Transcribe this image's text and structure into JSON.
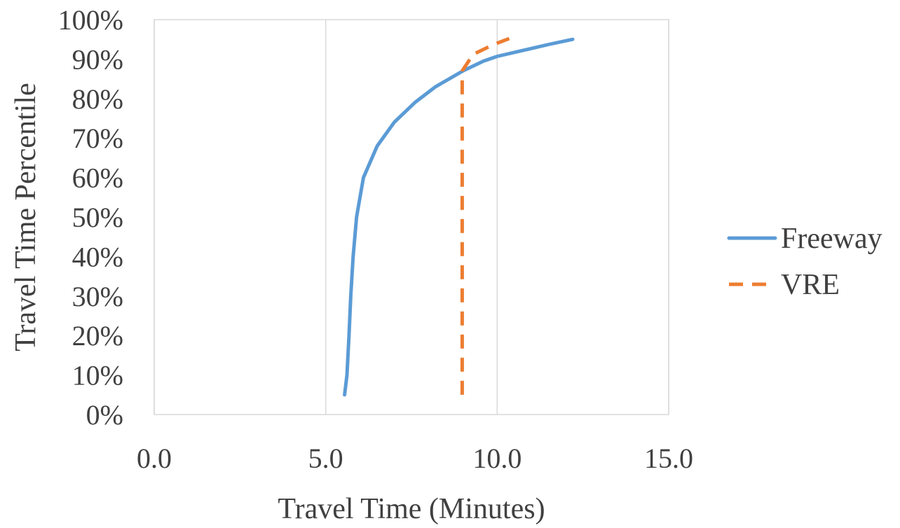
{
  "chart_data": {
    "type": "line",
    "title": "",
    "xlabel": "Travel Time (Minutes)",
    "ylabel": "Travel Time Percentile",
    "xlim": [
      0,
      15
    ],
    "ylim": [
      0,
      100
    ],
    "x_ticks": [
      0,
      5,
      10,
      15
    ],
    "x_tick_labels": [
      "0.0",
      "5.0",
      "10.0",
      "15.0"
    ],
    "y_ticks": [
      0,
      10,
      20,
      30,
      40,
      50,
      60,
      70,
      80,
      90,
      100
    ],
    "y_tick_labels": [
      "0%",
      "10%",
      "20%",
      "30%",
      "40%",
      "50%",
      "60%",
      "70%",
      "80%",
      "90%",
      "100%"
    ],
    "grid": "vertical",
    "legend_position": "right",
    "series": [
      {
        "name": "Freeway",
        "color": "#5b9bd5",
        "style": "solid",
        "points": [
          [
            5.55,
            5
          ],
          [
            5.62,
            10
          ],
          [
            5.68,
            20
          ],
          [
            5.73,
            30
          ],
          [
            5.8,
            40
          ],
          [
            5.9,
            50
          ],
          [
            6.1,
            60
          ],
          [
            6.5,
            68
          ],
          [
            7.0,
            74
          ],
          [
            7.6,
            79
          ],
          [
            8.2,
            83
          ],
          [
            9.0,
            87
          ],
          [
            9.6,
            89.5
          ],
          [
            10.0,
            90.7
          ],
          [
            10.5,
            91.7
          ],
          [
            11.0,
            92.7
          ],
          [
            11.5,
            93.7
          ],
          [
            12.2,
            95
          ]
        ]
      },
      {
        "name": "VRE",
        "color": "#ed7d31",
        "style": "dashed",
        "points": [
          [
            8.98,
            5
          ],
          [
            8.98,
            20
          ],
          [
            8.98,
            50
          ],
          [
            8.98,
            70
          ],
          [
            8.98,
            87
          ],
          [
            9.3,
            91.2
          ],
          [
            9.9,
            93.7
          ],
          [
            10.35,
            95.2
          ]
        ]
      }
    ]
  }
}
